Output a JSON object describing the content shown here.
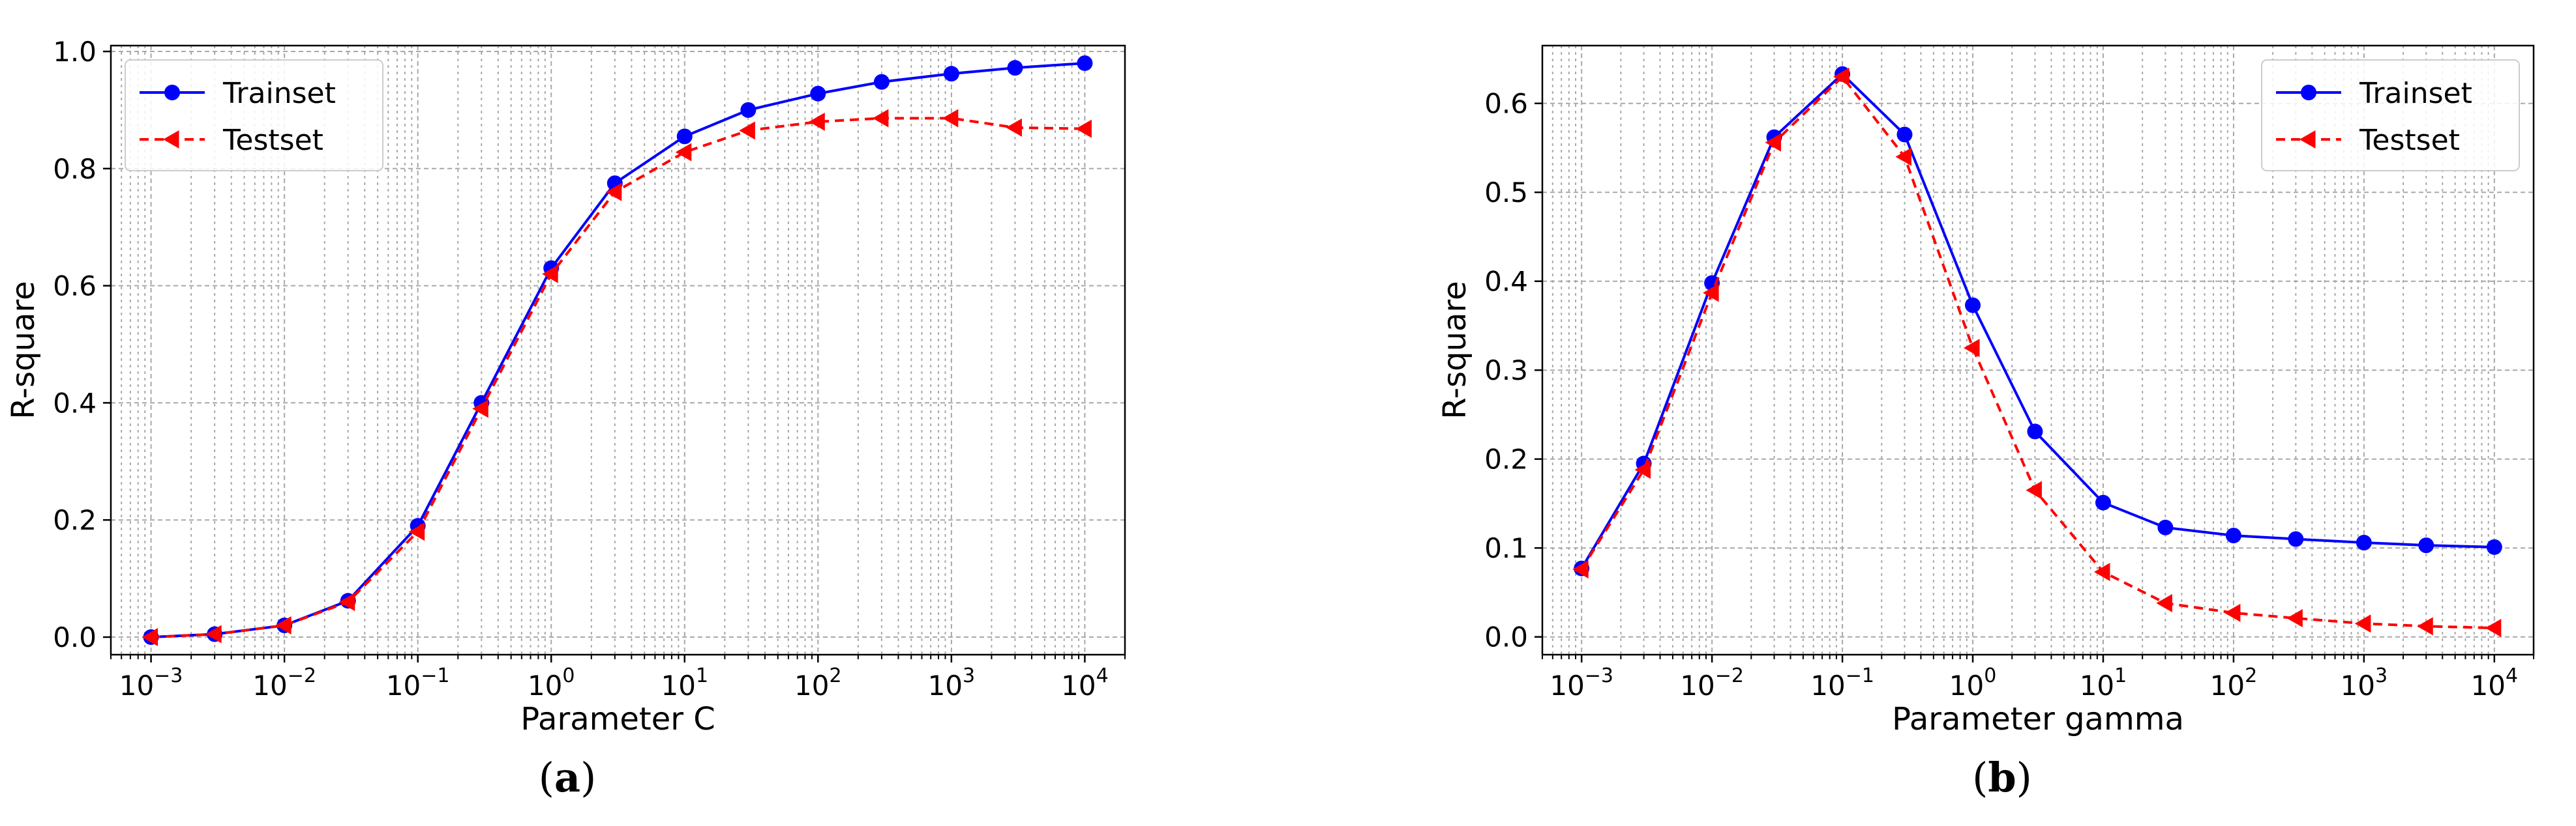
{
  "chart_data": [
    {
      "type": "line",
      "panel_label": "a",
      "xlabel": "Parameter C",
      "ylabel": "R-square",
      "xscale": "log",
      "xlim": [
        0.0005,
        20000
      ],
      "ylim": [
        -0.03,
        1.01
      ],
      "xticks": [
        0.001,
        0.01,
        0.1,
        1,
        10,
        100,
        1000,
        10000
      ],
      "xtick_labels": [
        [
          "10",
          "−3"
        ],
        [
          "10",
          "−2"
        ],
        [
          "10",
          "−1"
        ],
        [
          "10",
          "0"
        ],
        [
          "10",
          "1"
        ],
        [
          "10",
          "2"
        ],
        [
          "10",
          "3"
        ],
        [
          "10",
          "4"
        ]
      ],
      "yticks": [
        0.0,
        0.2,
        0.4,
        0.6,
        0.8,
        1.0
      ],
      "ytick_labels": [
        "0.0",
        "0.2",
        "0.4",
        "0.6",
        "0.8",
        "1.0"
      ],
      "grid": true,
      "legend_position": "top-left",
      "x": [
        0.001,
        0.003,
        0.01,
        0.03,
        0.1,
        0.3,
        1,
        3,
        10,
        30,
        100,
        300,
        1000,
        3000,
        10000
      ],
      "series": [
        {
          "name": "Trainset",
          "color": "#0000ff",
          "marker": "circle",
          "linestyle": "solid",
          "values": [
            0.0,
            0.005,
            0.02,
            0.062,
            0.19,
            0.4,
            0.63,
            0.775,
            0.855,
            0.9,
            0.928,
            0.948,
            0.962,
            0.972,
            0.98
          ]
        },
        {
          "name": "Testset",
          "color": "#ff0000",
          "marker": "triangle-left",
          "linestyle": "dashed",
          "values": [
            0.0,
            0.005,
            0.02,
            0.06,
            0.18,
            0.39,
            0.62,
            0.76,
            0.828,
            0.865,
            0.88,
            0.886,
            0.886,
            0.87,
            0.868
          ]
        }
      ]
    },
    {
      "type": "line",
      "panel_label": "b",
      "xlabel": "Parameter gamma",
      "ylabel": "R-square",
      "xscale": "log",
      "xlim": [
        0.0005,
        20000
      ],
      "ylim": [
        -0.02,
        0.665
      ],
      "xticks": [
        0.001,
        0.01,
        0.1,
        1,
        10,
        100,
        1000,
        10000
      ],
      "xtick_labels": [
        [
          "10",
          "−3"
        ],
        [
          "10",
          "−2"
        ],
        [
          "10",
          "−1"
        ],
        [
          "10",
          "0"
        ],
        [
          "10",
          "1"
        ],
        [
          "10",
          "2"
        ],
        [
          "10",
          "3"
        ],
        [
          "10",
          "4"
        ]
      ],
      "yticks": [
        0.0,
        0.1,
        0.2,
        0.3,
        0.4,
        0.5,
        0.6
      ],
      "ytick_labels": [
        "0.0",
        "0.1",
        "0.2",
        "0.3",
        "0.4",
        "0.5",
        "0.6"
      ],
      "grid": true,
      "legend_position": "top-right",
      "x": [
        0.001,
        0.003,
        0.01,
        0.03,
        0.1,
        0.3,
        1,
        3,
        10,
        30,
        100,
        300,
        1000,
        3000,
        10000
      ],
      "series": [
        {
          "name": "Trainset",
          "color": "#0000ff",
          "marker": "circle",
          "linestyle": "solid",
          "values": [
            0.077,
            0.195,
            0.398,
            0.562,
            0.633,
            0.565,
            0.373,
            0.231,
            0.151,
            0.123,
            0.114,
            0.11,
            0.106,
            0.103,
            0.101
          ]
        },
        {
          "name": "Testset",
          "color": "#ff0000",
          "marker": "triangle-left",
          "linestyle": "dashed",
          "values": [
            0.076,
            0.188,
            0.387,
            0.556,
            0.63,
            0.54,
            0.325,
            0.165,
            0.073,
            0.038,
            0.027,
            0.021,
            0.015,
            0.012,
            0.01
          ]
        }
      ]
    }
  ]
}
